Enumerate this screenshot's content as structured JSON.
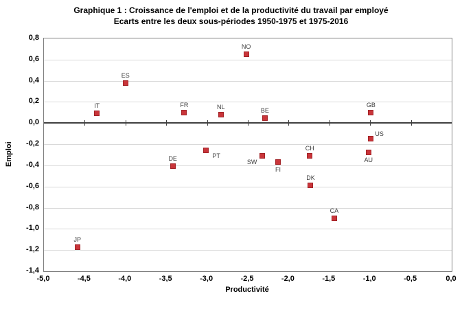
{
  "chart_data": {
    "type": "scatter",
    "title": "Graphique 1 : Croissance de l'emploi et  de la productivité du travail par employé",
    "subtitle": "Ecarts entre les deux sous-périodes 1950-1975 et 1975-2016",
    "xlabel": "Productivité",
    "ylabel": "Emploi",
    "xlim": [
      -5.0,
      0.0
    ],
    "ylim": [
      -1.4,
      0.8
    ],
    "x_ticks": [
      -5.0,
      -4.5,
      -4.0,
      -3.5,
      -3.0,
      -2.5,
      -2.0,
      -1.5,
      -1.0,
      -0.5,
      0.0
    ],
    "y_ticks": [
      0.8,
      0.6,
      0.4,
      0.2,
      0.0,
      -0.2,
      -0.4,
      -0.6,
      -0.8,
      -1.0,
      -1.2,
      -1.4
    ],
    "decimal_separator": ",",
    "grid": true,
    "legend_position": "none",
    "colors": {
      "marker_fill": "#c9353a",
      "marker_border": "#a22226",
      "gridline": "#d9d9d9",
      "zero_axis": "#3f3f3f",
      "plot_border": "#808080",
      "text": "#000000",
      "point_label": "#3d3d3d"
    },
    "points": [
      {
        "label": "JP",
        "x": -4.59,
        "y": -1.17,
        "label_pos": "above"
      },
      {
        "label": "IT",
        "x": -4.35,
        "y": 0.09,
        "label_pos": "above"
      },
      {
        "label": "ES",
        "x": -4.0,
        "y": 0.38,
        "label_pos": "above"
      },
      {
        "label": "DE",
        "x": -3.42,
        "y": -0.41,
        "label_pos": "above"
      },
      {
        "label": "FR",
        "x": -3.28,
        "y": 0.1,
        "label_pos": "above"
      },
      {
        "label": "PT",
        "x": -3.01,
        "y": -0.26,
        "label_pos": "right-below"
      },
      {
        "label": "NL",
        "x": -2.83,
        "y": 0.08,
        "label_pos": "above"
      },
      {
        "label": "NO",
        "x": -2.52,
        "y": 0.65,
        "label_pos": "above"
      },
      {
        "label": "SW",
        "x": -2.32,
        "y": -0.31,
        "label_pos": "left-below"
      },
      {
        "label": "BE",
        "x": -2.29,
        "y": 0.05,
        "label_pos": "above"
      },
      {
        "label": "FI",
        "x": -2.13,
        "y": -0.37,
        "label_pos": "below"
      },
      {
        "label": "CH",
        "x": -1.74,
        "y": -0.31,
        "label_pos": "above"
      },
      {
        "label": "DK",
        "x": -1.73,
        "y": -0.59,
        "label_pos": "above"
      },
      {
        "label": "CA",
        "x": -1.44,
        "y": -0.9,
        "label_pos": "above"
      },
      {
        "label": "AU",
        "x": -1.02,
        "y": -0.28,
        "label_pos": "below"
      },
      {
        "label": "US",
        "x": -0.99,
        "y": -0.15,
        "label_pos": "right-above"
      },
      {
        "label": "GB",
        "x": -0.99,
        "y": 0.1,
        "label_pos": "above"
      }
    ]
  }
}
